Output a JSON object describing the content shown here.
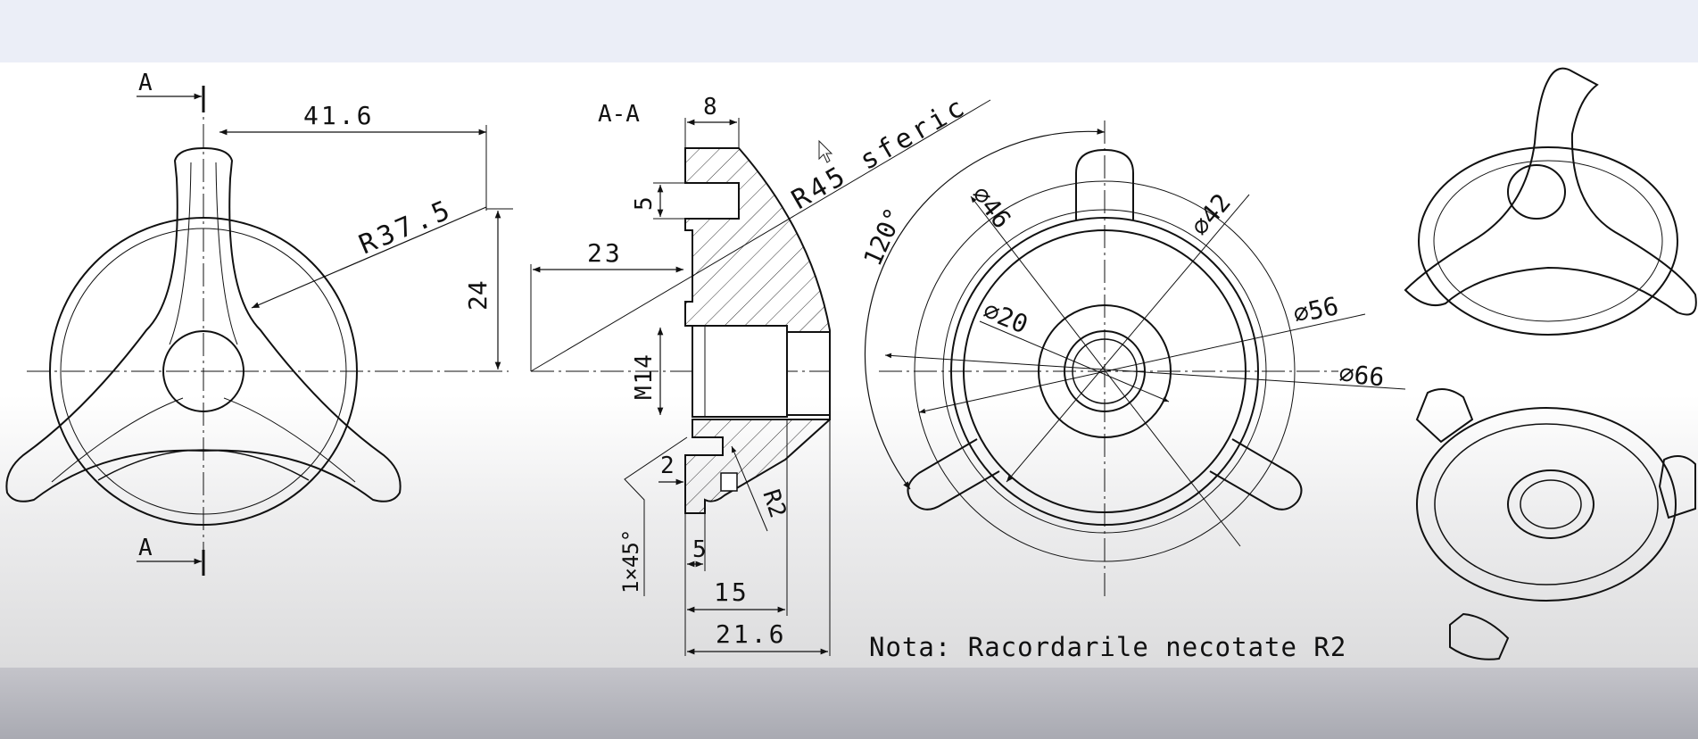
{
  "section_marks": {
    "top": "A",
    "bottom": "A"
  },
  "section_title": "A-A",
  "dimensions": {
    "front_width": "41.6",
    "front_radius": "R37.5",
    "front_height": "24",
    "sec_top_width": "8",
    "sec_slot_height": "5",
    "sec_sphere_radius": "R45 sferic",
    "sec_offset": "23",
    "sec_thread": "M14",
    "sec_step": "2",
    "sec_chamfer": "1×45°",
    "sec_fillet": "R2",
    "sec_bottom_small": "5",
    "sec_bottom_mid": "15",
    "sec_bottom_total": "21.6",
    "top_angle": "120°",
    "top_d46": "46",
    "top_d42": "42",
    "top_d20": "20",
    "top_d56": "56",
    "top_d66": "66"
  },
  "note": "Nota: Racordarile necotate R2",
  "colors": {
    "top_band": "#ebeef7",
    "sheet": "#ffffff",
    "ink": "#111111",
    "bottom_band": "#b4b5bc"
  }
}
